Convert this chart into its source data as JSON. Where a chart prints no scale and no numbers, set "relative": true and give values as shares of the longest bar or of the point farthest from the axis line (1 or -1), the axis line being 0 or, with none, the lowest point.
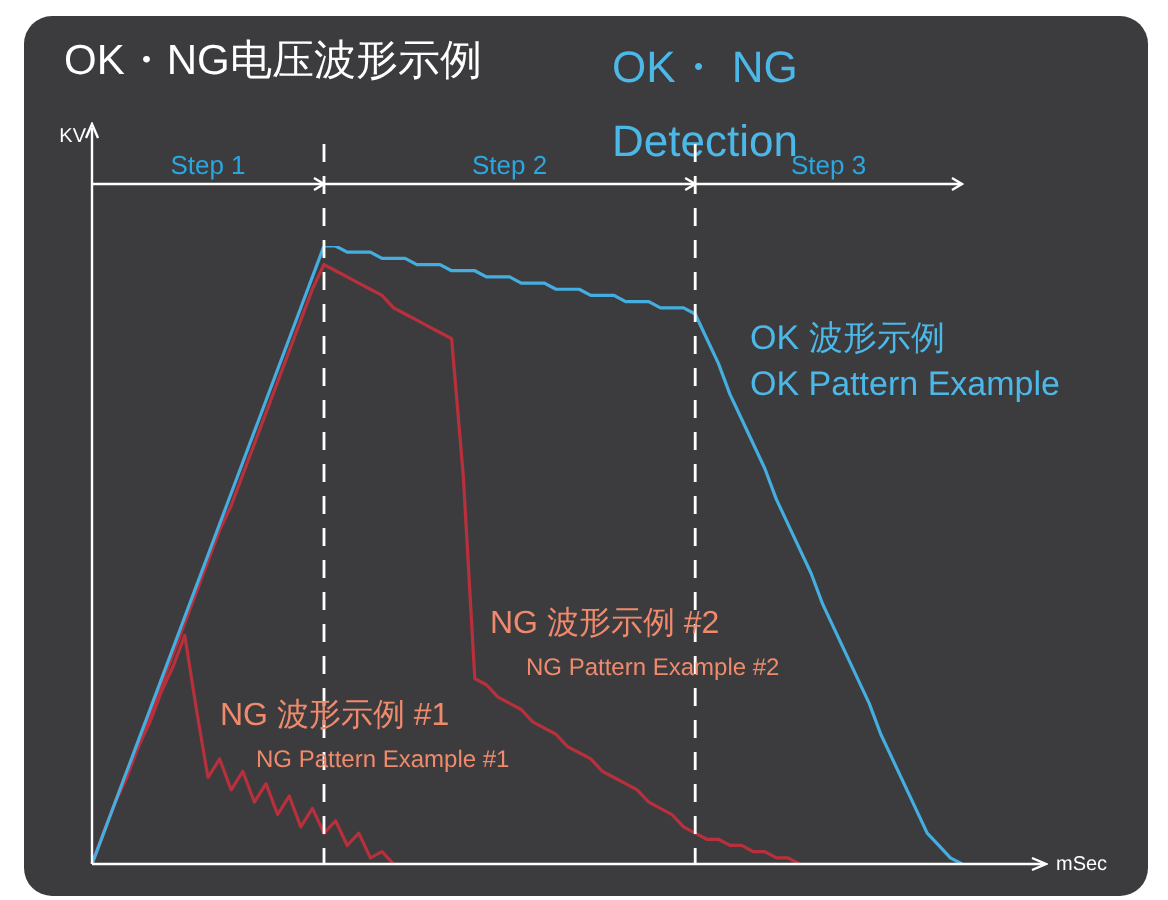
{
  "chart_data": {
    "type": "line",
    "title": "OK・NG电压波形示例",
    "subtitle": "OK・ NG Detection",
    "xlabel": "mSec",
    "ylabel": "KV",
    "relative": true,
    "annotations": [
      "Step 1",
      "Step 2",
      "Step 3"
    ],
    "categories": [
      null,
      null,
      null,
      null,
      null,
      null,
      null,
      null,
      null,
      null,
      null,
      null,
      null,
      null,
      null,
      null,
      null,
      null,
      null,
      null,
      null,
      null,
      null,
      null,
      null,
      null,
      null,
      null,
      null,
      null,
      null,
      null,
      null,
      null,
      null,
      null,
      null,
      null,
      null,
      null,
      null,
      null,
      null,
      null,
      null,
      null,
      null,
      null,
      null,
      null,
      null,
      null,
      null,
      null,
      null,
      null,
      null,
      null,
      null,
      null,
      null,
      null,
      null,
      null,
      null,
      null,
      null,
      null,
      null,
      null,
      null,
      null,
      null,
      null,
      null,
      null
    ],
    "series": [
      {
        "name": "OK 波形示例\nOK Pattern Example",
        "color": "#45aee0",
        "values": [
          0,
          0.05,
          0.1,
          0.15,
          0.2,
          0.25,
          0.3,
          0.35,
          0.4,
          0.45,
          0.5,
          0.55,
          0.6,
          0.65,
          0.7,
          0.75,
          0.8,
          0.85,
          0.9,
          0.95,
          1,
          1,
          0.99,
          0.99,
          0.99,
          0.98,
          0.98,
          0.98,
          0.97,
          0.97,
          0.97,
          0.96,
          0.96,
          0.96,
          0.95,
          0.95,
          0.95,
          0.94,
          0.94,
          0.94,
          0.93,
          0.93,
          0.93,
          0.92,
          0.92,
          0.92,
          0.91,
          0.91,
          0.91,
          0.9,
          0.9,
          0.9,
          0.89,
          0.85,
          0.81,
          0.76,
          0.72,
          0.68,
          0.64,
          0.59,
          0.55,
          0.51,
          0.47,
          0.42,
          0.38,
          0.34,
          0.3,
          0.26,
          0.21,
          0.17,
          0.13,
          0.09,
          0.05,
          0.03,
          0.01,
          0
        ]
      },
      {
        "name": "NG 波形示例 #2\nNG Pattern Example #2",
        "color": "#b8303c",
        "values": [
          0,
          0.05,
          0.1,
          0.15,
          0.19,
          0.24,
          0.29,
          0.34,
          0.39,
          0.44,
          0.49,
          0.54,
          0.58,
          0.63,
          0.68,
          0.73,
          0.78,
          0.83,
          0.88,
          0.93,
          0.97,
          0.96,
          0.95,
          0.94,
          0.93,
          0.92,
          0.9,
          0.89,
          0.88,
          0.87,
          0.86,
          0.85,
          0.63,
          0.3,
          0.29,
          0.27,
          0.26,
          0.25,
          0.23,
          0.22,
          0.21,
          0.19,
          0.18,
          0.17,
          0.15,
          0.14,
          0.13,
          0.12,
          0.1,
          0.09,
          0.08,
          0.06,
          0.05,
          0.04,
          0.04,
          0.03,
          0.03,
          0.02,
          0.02,
          0.01,
          0.01,
          0,
          null,
          null,
          null,
          null,
          null,
          null,
          null,
          null,
          null,
          null,
          null,
          null,
          null,
          null
        ]
      },
      {
        "name": "NG 波形示例 #1\nNG Pattern Example #1",
        "color": "#b8303c",
        "values": [
          0,
          0.05,
          0.1,
          0.14,
          0.19,
          0.23,
          0.28,
          0.32,
          0.37,
          0.25,
          0.14,
          0.17,
          0.12,
          0.15,
          0.1,
          0.13,
          0.08,
          0.11,
          0.06,
          0.09,
          0.05,
          0.07,
          0.03,
          0.05,
          0.01,
          0.02,
          0,
          null,
          null,
          null,
          null,
          null,
          null,
          null,
          null,
          null,
          null,
          null,
          null,
          null,
          null,
          null,
          null,
          null,
          null,
          null,
          null,
          null,
          null,
          null,
          null,
          null,
          null,
          null,
          null,
          null,
          null,
          null,
          null,
          null,
          null,
          null,
          null,
          null,
          null,
          null,
          null,
          null,
          null,
          null,
          null,
          null,
          null,
          null,
          null,
          null
        ]
      }
    ]
  }
}
